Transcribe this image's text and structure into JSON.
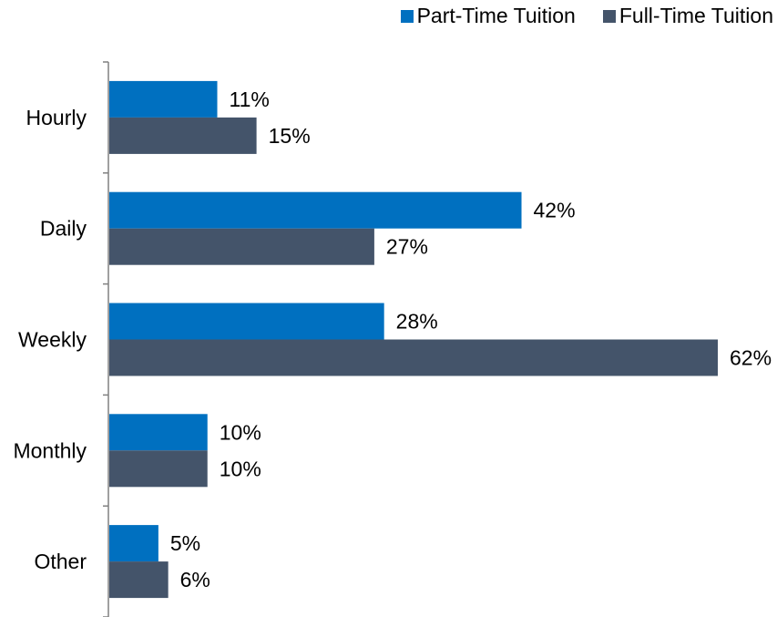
{
  "chart_data": {
    "type": "bar",
    "orientation": "horizontal",
    "categories": [
      "Hourly",
      "Daily",
      "Weekly",
      "Monthly",
      "Other"
    ],
    "series": [
      {
        "name": "Part-Time Tuition",
        "values": [
          11,
          42,
          28,
          10,
          5
        ],
        "labels": [
          "11%",
          "42%",
          "28%",
          "10%",
          "5%"
        ],
        "color": "#0070C0"
      },
      {
        "name": "Full-Time Tuition",
        "values": [
          15,
          27,
          62,
          10,
          6
        ],
        "labels": [
          "15%",
          "27%",
          "62%",
          "10%",
          "6%"
        ],
        "color": "#44546A"
      }
    ],
    "xlim": [
      0,
      62
    ],
    "unit": "%",
    "grid": false,
    "legend": "top-right"
  }
}
